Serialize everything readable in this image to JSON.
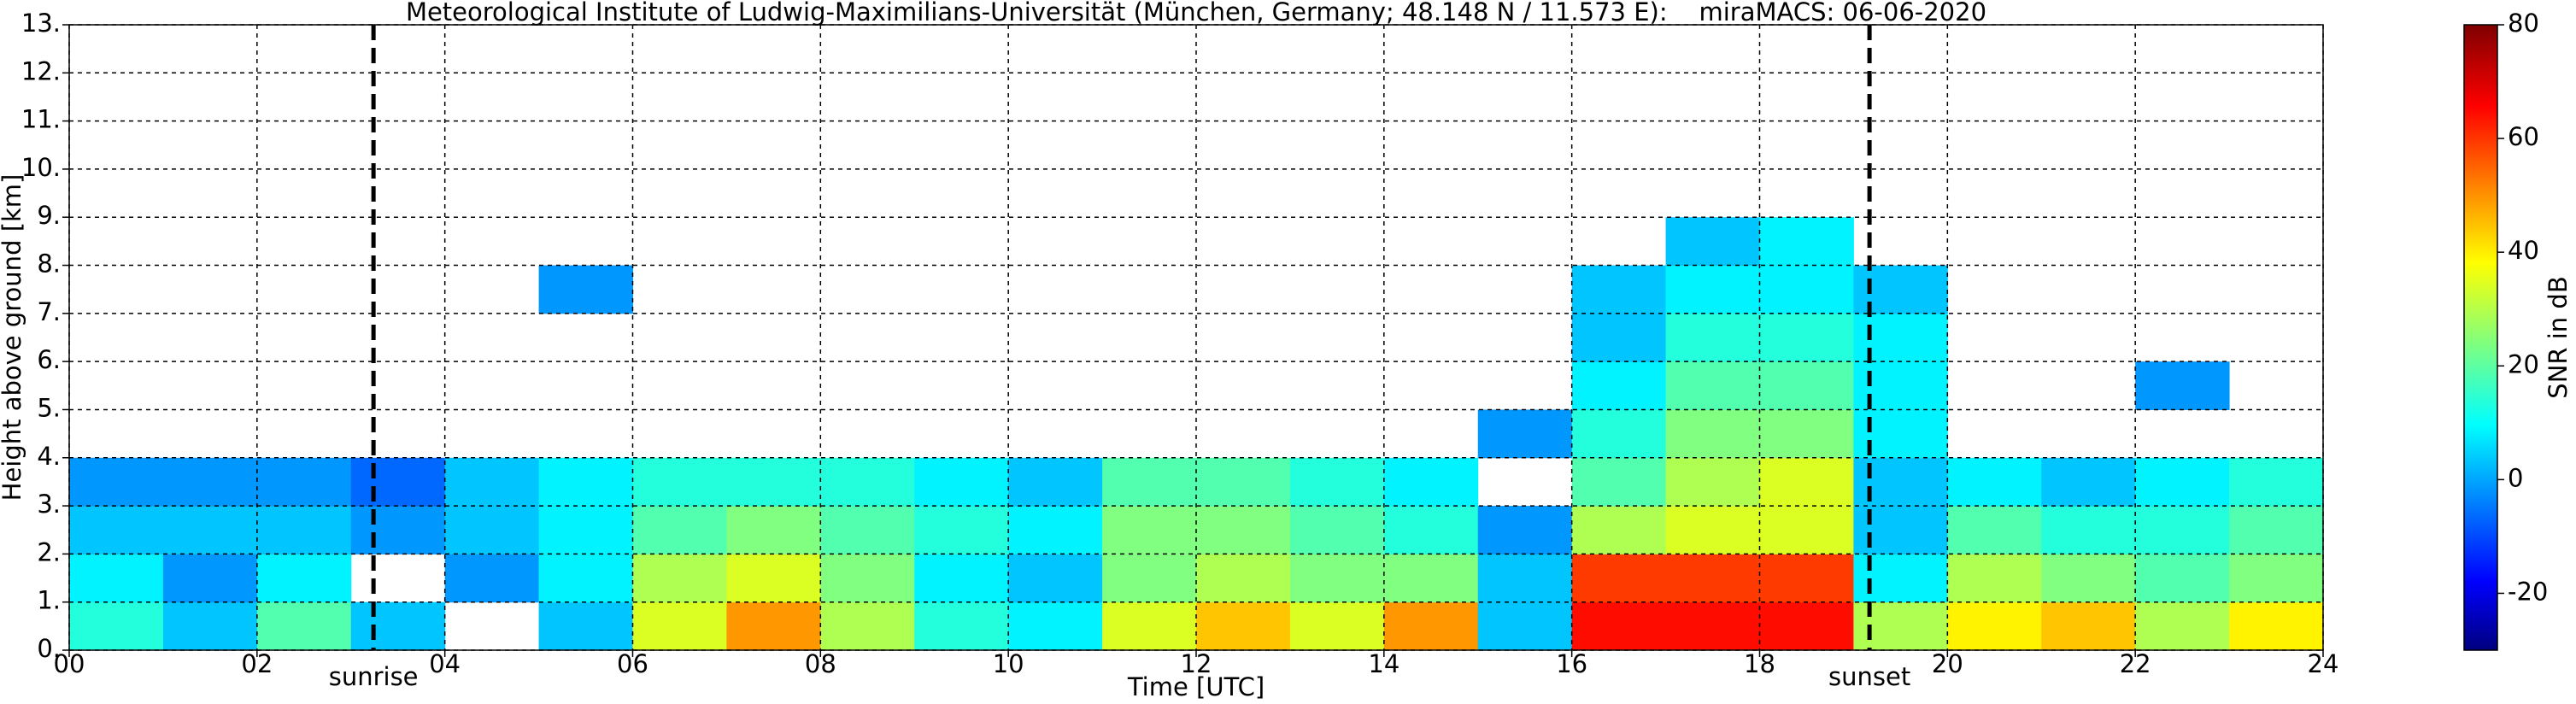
{
  "chart_data": {
    "type": "heatmap",
    "title": "Meteorological Institute of Ludwig-Maximilians-Universität (München, Germany; 48.148 N / 11.573 E):    miraMACS: 06-06-2020",
    "x_label": "Time [UTC]",
    "y_label": "Height above ground [km]",
    "colorbar_label": "SNR in dB",
    "colormap": "jet",
    "grid": true,
    "xlim": [
      0,
      24
    ],
    "ylim": [
      0,
      13
    ],
    "zlim": [
      -30,
      80
    ],
    "xticks": [
      {
        "value": 0,
        "label": "00"
      },
      {
        "value": 2,
        "label": "02"
      },
      {
        "value": 4,
        "label": "04"
      },
      {
        "value": 6,
        "label": "06"
      },
      {
        "value": 8,
        "label": "08"
      },
      {
        "value": 10,
        "label": "10"
      },
      {
        "value": 12,
        "label": "12"
      },
      {
        "value": 14,
        "label": "14"
      },
      {
        "value": 16,
        "label": "16"
      },
      {
        "value": 18,
        "label": "18"
      },
      {
        "value": 20,
        "label": "20"
      },
      {
        "value": 22,
        "label": "22"
      },
      {
        "value": 24,
        "label": "24"
      }
    ],
    "yticks": [
      {
        "value": 0,
        "label": "0."
      },
      {
        "value": 1,
        "label": "1."
      },
      {
        "value": 2,
        "label": "2."
      },
      {
        "value": 3,
        "label": "3."
      },
      {
        "value": 4,
        "label": "4."
      },
      {
        "value": 5,
        "label": "5."
      },
      {
        "value": 6,
        "label": "6."
      },
      {
        "value": 7,
        "label": "7."
      },
      {
        "value": 8,
        "label": "8."
      },
      {
        "value": 9,
        "label": "9."
      },
      {
        "value": 10,
        "label": "10."
      },
      {
        "value": 11,
        "label": "11."
      },
      {
        "value": 12,
        "label": "12."
      },
      {
        "value": 13,
        "label": "13."
      }
    ],
    "zticks": [
      -20,
      0,
      20,
      40,
      60,
      80
    ],
    "annotations": [
      {
        "label": "sunrise",
        "x": 3.24
      },
      {
        "label": "sunset",
        "x": 19.17
      }
    ],
    "x_bins": [
      0,
      1,
      2,
      3,
      4,
      5,
      6,
      7,
      8,
      9,
      10,
      11,
      12,
      13,
      14,
      15,
      16,
      17,
      18,
      19,
      20,
      21,
      22,
      23,
      24
    ],
    "y_bins": [
      0,
      1,
      2,
      3,
      4,
      5,
      6,
      7,
      8,
      9
    ],
    "z": [
      [
        15,
        5,
        20,
        5,
        null,
        5,
        35,
        50,
        30,
        15,
        10,
        35,
        45,
        35,
        50,
        5,
        65,
        65,
        65,
        30,
        40,
        45,
        30,
        40
      ],
      [
        10,
        0,
        10,
        null,
        0,
        10,
        30,
        35,
        25,
        10,
        5,
        25,
        30,
        25,
        25,
        5,
        60,
        60,
        60,
        10,
        30,
        25,
        20,
        25
      ],
      [
        5,
        5,
        5,
        0,
        5,
        10,
        20,
        25,
        20,
        15,
        10,
        25,
        25,
        20,
        15,
        0,
        30,
        35,
        35,
        5,
        20,
        15,
        15,
        20
      ],
      [
        0,
        0,
        0,
        -5,
        5,
        10,
        15,
        15,
        15,
        10,
        5,
        20,
        20,
        15,
        10,
        null,
        20,
        30,
        35,
        5,
        10,
        5,
        10,
        15
      ],
      [
        null,
        null,
        null,
        null,
        null,
        null,
        null,
        null,
        null,
        null,
        null,
        null,
        null,
        null,
        null,
        0,
        15,
        25,
        25,
        10,
        null,
        null,
        null,
        null
      ],
      [
        null,
        null,
        null,
        null,
        null,
        null,
        null,
        null,
        null,
        null,
        null,
        null,
        null,
        null,
        null,
        null,
        10,
        20,
        20,
        10,
        null,
        null,
        0,
        null
      ],
      [
        null,
        null,
        null,
        null,
        null,
        null,
        null,
        null,
        null,
        null,
        null,
        null,
        null,
        null,
        null,
        null,
        5,
        15,
        15,
        10,
        null,
        null,
        null,
        null
      ],
      [
        null,
        null,
        null,
        null,
        null,
        0,
        null,
        null,
        null,
        null,
        null,
        null,
        null,
        null,
        null,
        null,
        5,
        10,
        10,
        5,
        null,
        null,
        null,
        null
      ],
      [
        null,
        null,
        null,
        null,
        null,
        null,
        null,
        null,
        null,
        null,
        null,
        null,
        null,
        null,
        null,
        null,
        null,
        5,
        10,
        null,
        null,
        null,
        null,
        null
      ]
    ]
  }
}
